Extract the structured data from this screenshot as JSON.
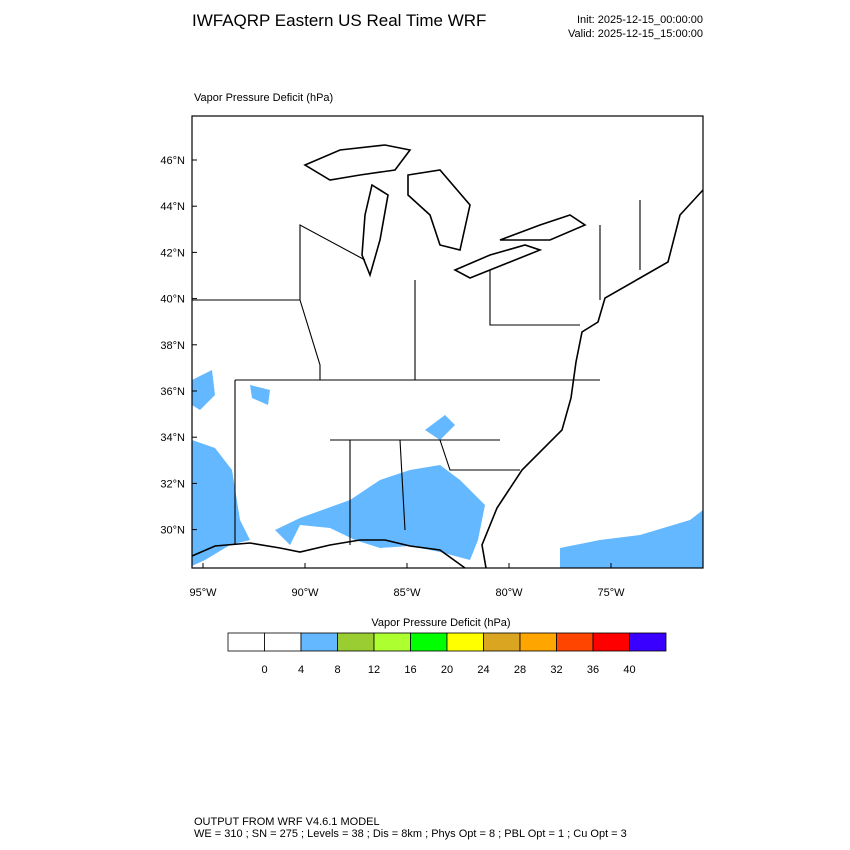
{
  "header": {
    "title": "IWFAQRP Eastern US Real Time WRF",
    "init": "Init: 2025-12-15_00:00:00",
    "valid": "Valid: 2025-12-15_15:00:00"
  },
  "map": {
    "field_label": "Vapor Pressure Deficit   (hPa)",
    "lat_labels": [
      "46°N",
      "44°N",
      "42°N",
      "40°N",
      "38°N",
      "36°N",
      "34°N",
      "32°N",
      "30°N"
    ],
    "lon_labels": [
      "95°W",
      "90°W",
      "85°W",
      "80°W",
      "75°W"
    ]
  },
  "colorbar": {
    "title": "Vapor Pressure Deficit  (hPa)",
    "colors": [
      "#ffffff",
      "#ffffff",
      "#63b8ff",
      "#9acd32",
      "#adff2f",
      "#00ff00",
      "#ffff00",
      "#daa520",
      "#ffa500",
      "#ff4500",
      "#ff0000",
      "#3a00ff"
    ],
    "labels": [
      0,
      4,
      8,
      12,
      16,
      20,
      24,
      28,
      32,
      36,
      40
    ]
  },
  "footer": {
    "line1": "OUTPUT FROM WRF V4.6.1 MODEL",
    "line2": "WE = 310 ; SN = 275 ; Levels = 38 ; Dis = 8km ; Phys Opt = 8 ; PBL Opt = 1 ; Cu Opt = 3"
  }
}
